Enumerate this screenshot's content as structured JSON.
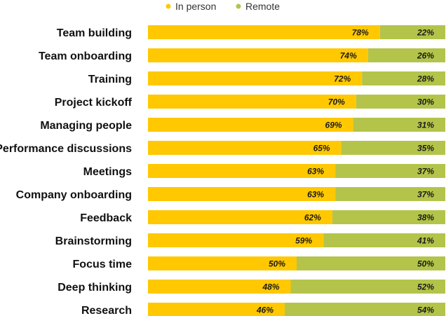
{
  "chart_data": {
    "type": "bar",
    "orientation": "horizontal",
    "stacked": true,
    "percent_stacked": true,
    "title": "",
    "xlabel": "",
    "ylabel": "",
    "xlim": [
      0,
      100
    ],
    "grid": false,
    "legend": {
      "position": "top-center",
      "entries": [
        "In person",
        "Remote"
      ]
    },
    "colors": {
      "in_person": "#FFC800",
      "remote": "#B4C44A"
    },
    "value_suffix": "%",
    "categories": [
      "Team building",
      "Team onboarding",
      "Training",
      "Project kickoff",
      "Managing people",
      "Performance discussions",
      "Meetings",
      "Company onboarding",
      "Feedback",
      "Brainstorming",
      "Focus time",
      "Deep thinking",
      "Research"
    ],
    "series": [
      {
        "name": "In person",
        "values": [
          78,
          74,
          72,
          70,
          69,
          65,
          63,
          63,
          62,
          59,
          50,
          48,
          46
        ]
      },
      {
        "name": "Remote",
        "values": [
          22,
          26,
          28,
          30,
          31,
          35,
          37,
          37,
          38,
          41,
          50,
          52,
          54
        ]
      }
    ]
  }
}
